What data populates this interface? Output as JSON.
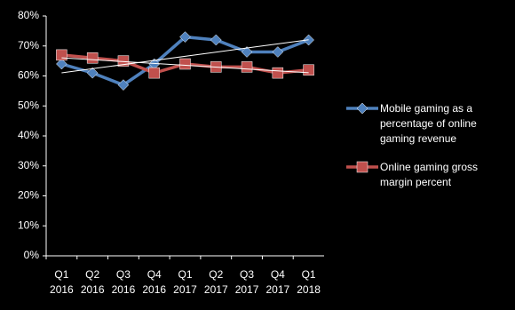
{
  "chart_data": {
    "type": "line",
    "categories": [
      "Q1 2016",
      "Q2 2016",
      "Q3 2016",
      "Q4 2016",
      "Q1 2017",
      "Q2 2017",
      "Q3 2017",
      "Q4 2017",
      "Q1 2018"
    ],
    "series": [
      {
        "name": "Mobile gaming  as a percentage of online gaming revenue",
        "color": "#4f81bd",
        "marker": "diamond",
        "trendline": true,
        "values": [
          64,
          61,
          57,
          64,
          73,
          72,
          68,
          68,
          72
        ]
      },
      {
        "name": "Online gaming gross margin percent",
        "color": "#c0504d",
        "marker": "square",
        "trendline": true,
        "values": [
          67,
          66,
          65,
          61,
          64,
          63,
          63,
          61,
          62
        ]
      }
    ],
    "ylim": [
      0,
      80
    ],
    "yticks": [
      {
        "value": 0,
        "label": "0%"
      },
      {
        "value": 10,
        "label": "10%"
      },
      {
        "value": 20,
        "label": "20%"
      },
      {
        "value": 30,
        "label": "30%"
      },
      {
        "value": 40,
        "label": "40%"
      },
      {
        "value": 50,
        "label": "50%"
      },
      {
        "value": 60,
        "label": "60%"
      },
      {
        "value": 70,
        "label": "70%"
      },
      {
        "value": 80,
        "label": "80%"
      }
    ],
    "legend": "right",
    "grid": false
  }
}
